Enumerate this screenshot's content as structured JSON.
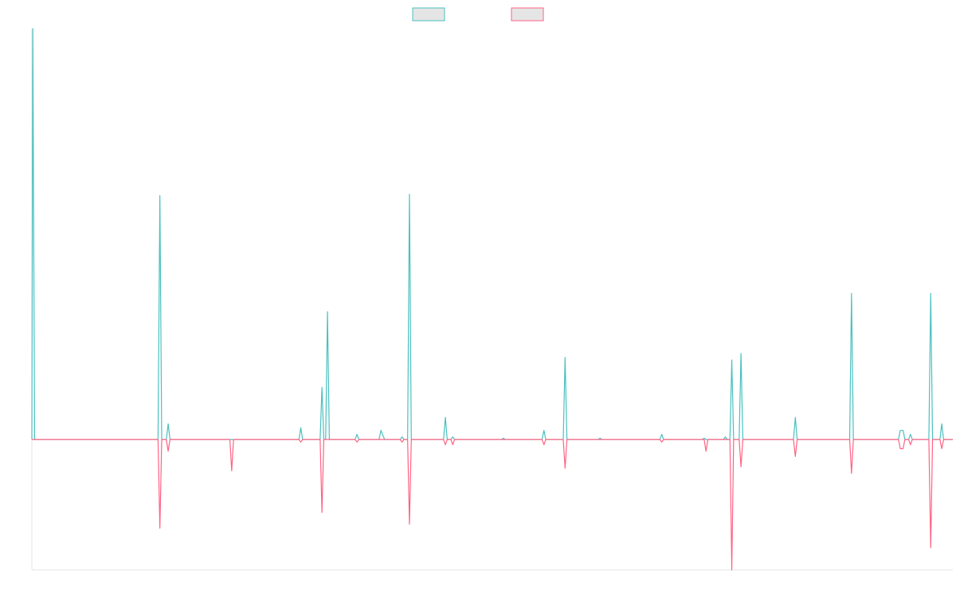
{
  "chart_data": {
    "type": "line",
    "title": "",
    "xlabel": "",
    "ylabel": "",
    "x_range": [
      0,
      100
    ],
    "ylim": [
      -1.0,
      3.15
    ],
    "grid": false,
    "legend_position": "top-center",
    "series": [
      {
        "color": "#4bc0c0",
        "points": [
          [
            0,
            0
          ],
          [
            0.1,
            3.15
          ],
          [
            0.3,
            0
          ],
          [
            13.7,
            0
          ],
          [
            13.9,
            1.87
          ],
          [
            14.1,
            0
          ],
          [
            14.6,
            0
          ],
          [
            14.8,
            0.12
          ],
          [
            15.0,
            0
          ],
          [
            29.0,
            0
          ],
          [
            29.2,
            0.09
          ],
          [
            29.4,
            0
          ],
          [
            31.3,
            0
          ],
          [
            31.5,
            0.4
          ],
          [
            31.7,
            0
          ],
          [
            31.9,
            0
          ],
          [
            32.1,
            0.98
          ],
          [
            32.3,
            0
          ],
          [
            35.1,
            0
          ],
          [
            35.3,
            0.04
          ],
          [
            35.5,
            0
          ],
          [
            37.7,
            0
          ],
          [
            37.9,
            0.07
          ],
          [
            38.3,
            0
          ],
          [
            40.0,
            0
          ],
          [
            40.2,
            0.02
          ],
          [
            40.4,
            0
          ],
          [
            40.8,
            0
          ],
          [
            41.0,
            1.88
          ],
          [
            41.2,
            0
          ],
          [
            44.7,
            0
          ],
          [
            44.9,
            0.17
          ],
          [
            45.1,
            0
          ],
          [
            45.5,
            0
          ],
          [
            45.7,
            0.02
          ],
          [
            45.9,
            0
          ],
          [
            51.0,
            0
          ],
          [
            51.2,
            0.01
          ],
          [
            51.4,
            0
          ],
          [
            55.4,
            0
          ],
          [
            55.6,
            0.07
          ],
          [
            55.8,
            0
          ],
          [
            57.7,
            0
          ],
          [
            57.9,
            0.63
          ],
          [
            58.1,
            0
          ],
          [
            61.5,
            0
          ],
          [
            61.7,
            0.01
          ],
          [
            61.9,
            0
          ],
          [
            68.2,
            0
          ],
          [
            68.4,
            0.04
          ],
          [
            68.6,
            0
          ],
          [
            72.8,
            0
          ],
          [
            73.0,
            0.01
          ],
          [
            73.2,
            0
          ],
          [
            75.1,
            0
          ],
          [
            75.3,
            0.02
          ],
          [
            75.5,
            0
          ],
          [
            75.8,
            0
          ],
          [
            76.0,
            0.61
          ],
          [
            76.2,
            0
          ],
          [
            76.8,
            0
          ],
          [
            77.0,
            0.66
          ],
          [
            77.2,
            0
          ],
          [
            82.7,
            0
          ],
          [
            82.9,
            0.17
          ],
          [
            83.1,
            0
          ],
          [
            88.8,
            0
          ],
          [
            89.0,
            1.12
          ],
          [
            89.2,
            0
          ],
          [
            94.1,
            0
          ],
          [
            94.3,
            0.07
          ],
          [
            94.6,
            0.07
          ],
          [
            94.8,
            0
          ],
          [
            95.2,
            0
          ],
          [
            95.4,
            0.04
          ],
          [
            95.6,
            0
          ],
          [
            97.4,
            0
          ],
          [
            97.6,
            1.12
          ],
          [
            97.8,
            0
          ],
          [
            98.6,
            0
          ],
          [
            98.8,
            0.12
          ],
          [
            99.0,
            0
          ],
          [
            100,
            0
          ]
        ]
      },
      {
        "color": "#ff6384",
        "points": [
          [
            0,
            0
          ],
          [
            13.7,
            0
          ],
          [
            13.9,
            -0.68
          ],
          [
            14.1,
            0
          ],
          [
            14.6,
            0
          ],
          [
            14.8,
            -0.09
          ],
          [
            15.0,
            0
          ],
          [
            21.5,
            0
          ],
          [
            21.7,
            -0.24
          ],
          [
            21.9,
            0
          ],
          [
            29.0,
            0
          ],
          [
            29.2,
            -0.02
          ],
          [
            29.4,
            0
          ],
          [
            31.3,
            0
          ],
          [
            31.5,
            -0.56
          ],
          [
            31.7,
            0
          ],
          [
            35.1,
            0
          ],
          [
            35.3,
            -0.02
          ],
          [
            35.5,
            0
          ],
          [
            40.0,
            0
          ],
          [
            40.2,
            -0.02
          ],
          [
            40.4,
            0
          ],
          [
            40.8,
            0
          ],
          [
            41.0,
            -0.65
          ],
          [
            41.2,
            0
          ],
          [
            44.7,
            0
          ],
          [
            44.9,
            -0.04
          ],
          [
            45.1,
            0
          ],
          [
            45.5,
            0
          ],
          [
            45.7,
            -0.04
          ],
          [
            45.9,
            0
          ],
          [
            55.4,
            0
          ],
          [
            55.6,
            -0.04
          ],
          [
            55.8,
            0
          ],
          [
            57.7,
            0
          ],
          [
            57.9,
            -0.22
          ],
          [
            58.1,
            0
          ],
          [
            68.2,
            0
          ],
          [
            68.4,
            -0.02
          ],
          [
            68.6,
            0
          ],
          [
            73.0,
            0
          ],
          [
            73.2,
            -0.09
          ],
          [
            73.4,
            0
          ],
          [
            75.8,
            0
          ],
          [
            76.0,
            -1.0
          ],
          [
            76.2,
            0
          ],
          [
            76.8,
            0
          ],
          [
            77.0,
            -0.21
          ],
          [
            77.2,
            0
          ],
          [
            82.7,
            0
          ],
          [
            82.9,
            -0.13
          ],
          [
            83.1,
            0
          ],
          [
            88.8,
            0
          ],
          [
            89.0,
            -0.26
          ],
          [
            89.2,
            0
          ],
          [
            94.1,
            0
          ],
          [
            94.3,
            -0.07
          ],
          [
            94.6,
            -0.07
          ],
          [
            94.8,
            0
          ],
          [
            95.2,
            0
          ],
          [
            95.4,
            -0.04
          ],
          [
            95.6,
            0
          ],
          [
            97.4,
            0
          ],
          [
            97.6,
            -0.83
          ],
          [
            97.8,
            0
          ],
          [
            98.6,
            0
          ],
          [
            98.8,
            -0.07
          ],
          [
            99.0,
            0
          ],
          [
            100,
            0
          ]
        ]
      }
    ],
    "legend_swatch_fill": "#e5e5e5",
    "axis_color": "#e6e6e6"
  }
}
